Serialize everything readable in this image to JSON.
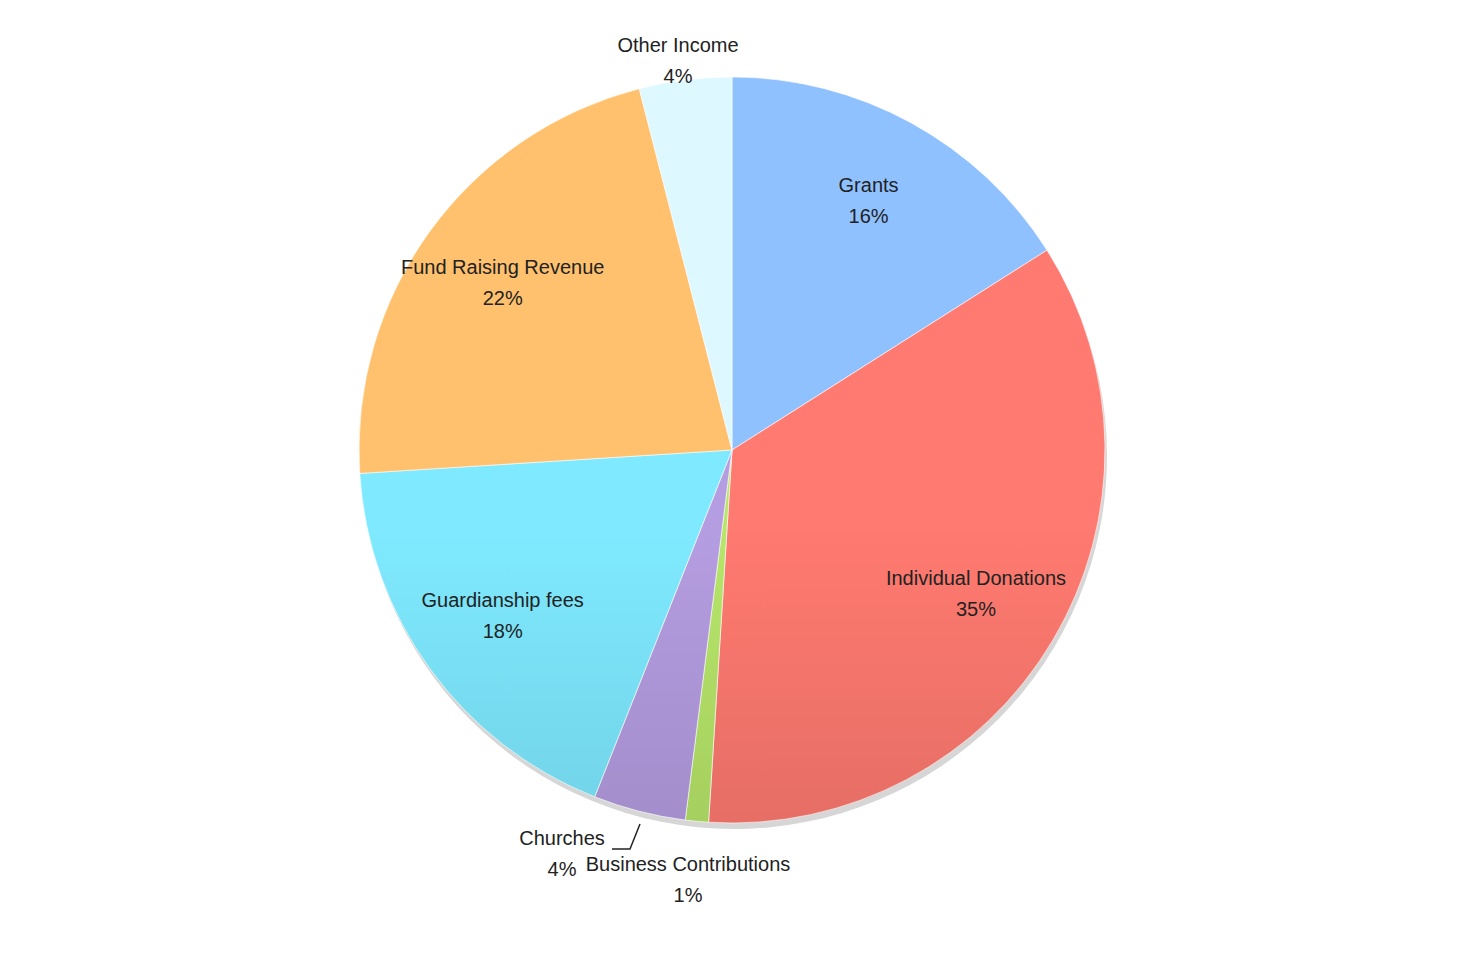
{
  "chart_data": {
    "type": "pie",
    "categories": [
      "Grants",
      "Individual Donations",
      "Business Contributions",
      "Churches",
      "Guardianship fees",
      "Fund Raising Revenue",
      "Other Income"
    ],
    "values": [
      16,
      35,
      1,
      4,
      18,
      22,
      4
    ],
    "value_labels": [
      "16%",
      "35%",
      "1%",
      "4%",
      "18%",
      "22%",
      "4%"
    ],
    "colors": [
      "#7ba4da",
      "#d9685f",
      "#9cc45a",
      "#9a86c0",
      "#6cc7dd",
      "#f3a45d",
      "#bcd4f2"
    ],
    "data_labels": true
  }
}
